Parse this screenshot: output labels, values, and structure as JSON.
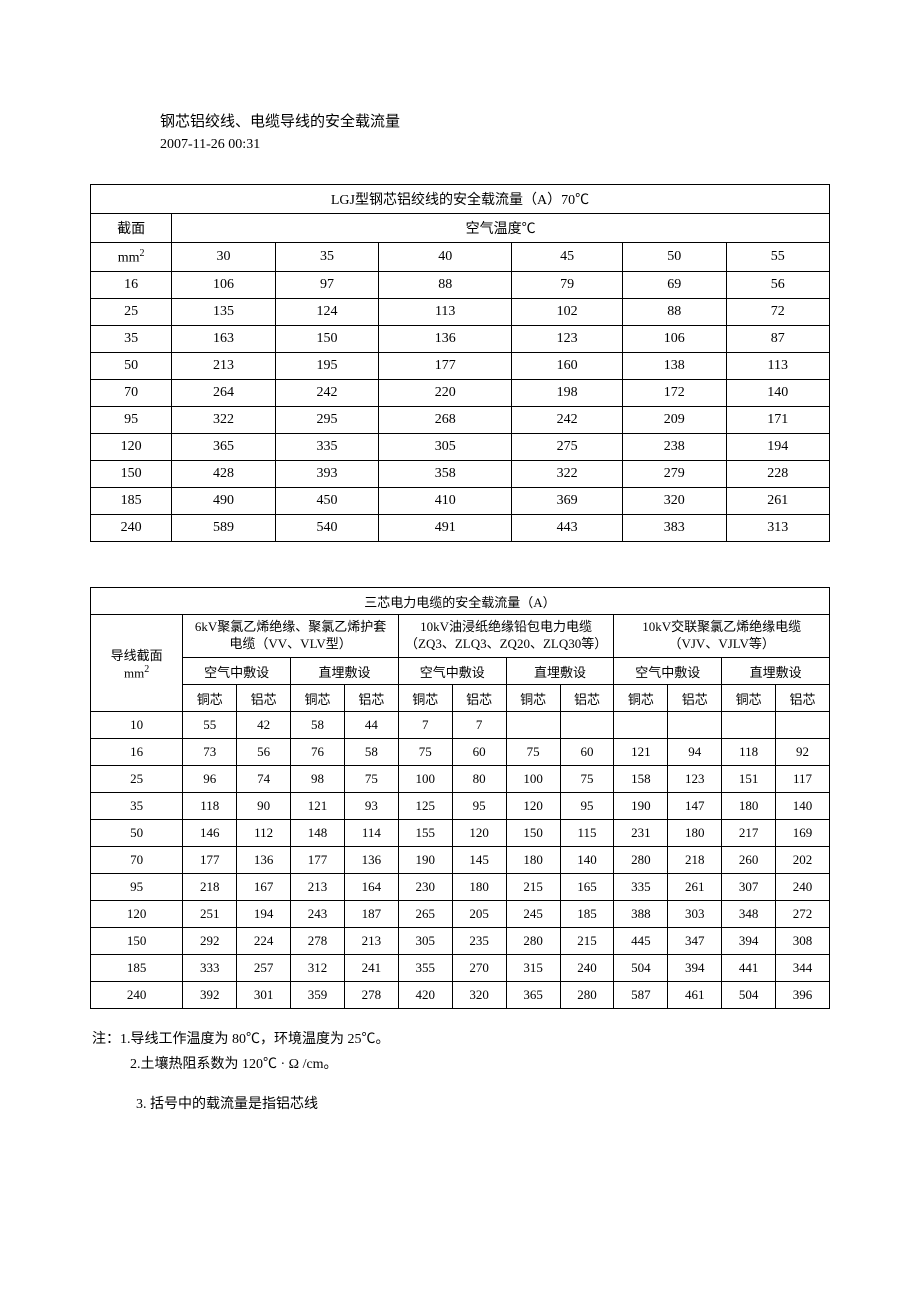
{
  "header": {
    "title": "钢芯铝绞线、电缆导线的安全载流量",
    "timestamp": "2007-11-26 00:31"
  },
  "table1": {
    "title": "LGJ型钢芯铝绞线的安全载流量（A）70℃",
    "section_label": "截面",
    "section_unit_prefix": "mm",
    "section_unit_sup": "2",
    "temp_label": "空气温度℃",
    "temp_cols": [
      "30",
      "35",
      "40",
      "45",
      "50",
      "55"
    ],
    "rows": [
      [
        "16",
        "106",
        "97",
        "88",
        "79",
        "69",
        "56"
      ],
      [
        "25",
        "135",
        "124",
        "113",
        "102",
        "88",
        "72"
      ],
      [
        "35",
        "163",
        "150",
        "136",
        "123",
        "106",
        "87"
      ],
      [
        "50",
        "213",
        "195",
        "177",
        "160",
        "138",
        "113"
      ],
      [
        "70",
        "264",
        "242",
        "220",
        "198",
        "172",
        "140"
      ],
      [
        "95",
        "322",
        "295",
        "268",
        "242",
        "209",
        "171"
      ],
      [
        "120",
        "365",
        "335",
        "305",
        "275",
        "238",
        "194"
      ],
      [
        "150",
        "428",
        "393",
        "358",
        "322",
        "279",
        "228"
      ],
      [
        "185",
        "490",
        "450",
        "410",
        "369",
        "320",
        "261"
      ],
      [
        "240",
        "589",
        "540",
        "491",
        "443",
        "383",
        "313"
      ]
    ],
    "col_widths": [
      "11%",
      "14%",
      "14%",
      "18%",
      "15%",
      "14%",
      "14%"
    ]
  },
  "table2": {
    "title": "三芯电力电缆的安全载流量（A）",
    "section_label_1": "导线截面",
    "section_unit_prefix": "mm",
    "section_unit_sup": "2",
    "cable_types": [
      "6kV聚氯乙烯绝缘、聚氯乙烯护套电缆（VV、VLV型）",
      "10kV油浸纸绝缘铅包电力电缆（ZQ3、ZLQ3、ZQ20、ZLQ30等）",
      "10kV交联聚氯乙烯绝缘电缆（VJV、VJLV等）"
    ],
    "install_types": [
      "空气中敷设",
      "直埋敷设",
      "空气中敷设",
      "直埋敷设",
      "空气中敷设",
      "直埋敷设"
    ],
    "core_types": [
      "铜芯",
      "铝芯",
      "铜芯",
      "铝芯",
      "铜芯",
      "铝芯",
      "铜芯",
      "铝芯",
      "铜芯",
      "铝芯",
      "铜芯",
      "铝芯"
    ],
    "rows": [
      [
        "10",
        "55",
        "42",
        "58",
        "44",
        "7",
        "7",
        "",
        "",
        "",
        "",
        "",
        ""
      ],
      [
        "16",
        "73",
        "56",
        "76",
        "58",
        "75",
        "60",
        "75",
        "60",
        "121",
        "94",
        "118",
        "92"
      ],
      [
        "25",
        "96",
        "74",
        "98",
        "75",
        "100",
        "80",
        "100",
        "75",
        "158",
        "123",
        "151",
        "117"
      ],
      [
        "35",
        "118",
        "90",
        "121",
        "93",
        "125",
        "95",
        "120",
        "95",
        "190",
        "147",
        "180",
        "140"
      ],
      [
        "50",
        "146",
        "112",
        "148",
        "114",
        "155",
        "120",
        "150",
        "115",
        "231",
        "180",
        "217",
        "169"
      ],
      [
        "70",
        "177",
        "136",
        "177",
        "136",
        "190",
        "145",
        "180",
        "140",
        "280",
        "218",
        "260",
        "202"
      ],
      [
        "95",
        "218",
        "167",
        "213",
        "164",
        "230",
        "180",
        "215",
        "165",
        "335",
        "261",
        "307",
        "240"
      ],
      [
        "120",
        "251",
        "194",
        "243",
        "187",
        "265",
        "205",
        "245",
        "185",
        "388",
        "303",
        "348",
        "272"
      ],
      [
        "150",
        "292",
        "224",
        "278",
        "213",
        "305",
        "235",
        "280",
        "215",
        "445",
        "347",
        "394",
        "308"
      ],
      [
        "185",
        "333",
        "257",
        "312",
        "241",
        "355",
        "270",
        "315",
        "240",
        "504",
        "394",
        "441",
        "344"
      ],
      [
        "240",
        "392",
        "301",
        "359",
        "278",
        "420",
        "320",
        "365",
        "280",
        "587",
        "461",
        "504",
        "396"
      ]
    ],
    "col_widths": [
      "12.5%",
      "7.3%",
      "7.3%",
      "7.3%",
      "7.3%",
      "7.3%",
      "7.3%",
      "7.3%",
      "7.3%",
      "7.3%",
      "7.3%",
      "7.3%",
      "7.3%"
    ]
  },
  "notes": {
    "n1": "注：1.导线工作温度为 80℃，环境温度为 25℃。",
    "n2": "2.土壤热阻系数为 120℃ · Ω /cm。",
    "n3": "3. 括号中的载流量是指铝芯线"
  }
}
